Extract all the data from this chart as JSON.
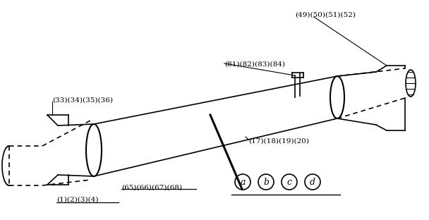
{
  "fig_width": 6.08,
  "fig_height": 3.12,
  "dpi": 100,
  "bg_color": "#ffffff",
  "line_color": "#000000",
  "labels": {
    "top_right": "(49)(50)(51)(52)",
    "mid_right_upper": "(81)(82)(83)(84)",
    "mid_right_lower": "(17)(18)(19)(20)",
    "top_left": "(33)(34)(35)(36)",
    "bottom_left": "(1)(2)(3)(4)",
    "bottom_mid": "(65)(66)(67)(68)",
    "circles": [
      "a",
      "b",
      "c",
      "d"
    ]
  }
}
